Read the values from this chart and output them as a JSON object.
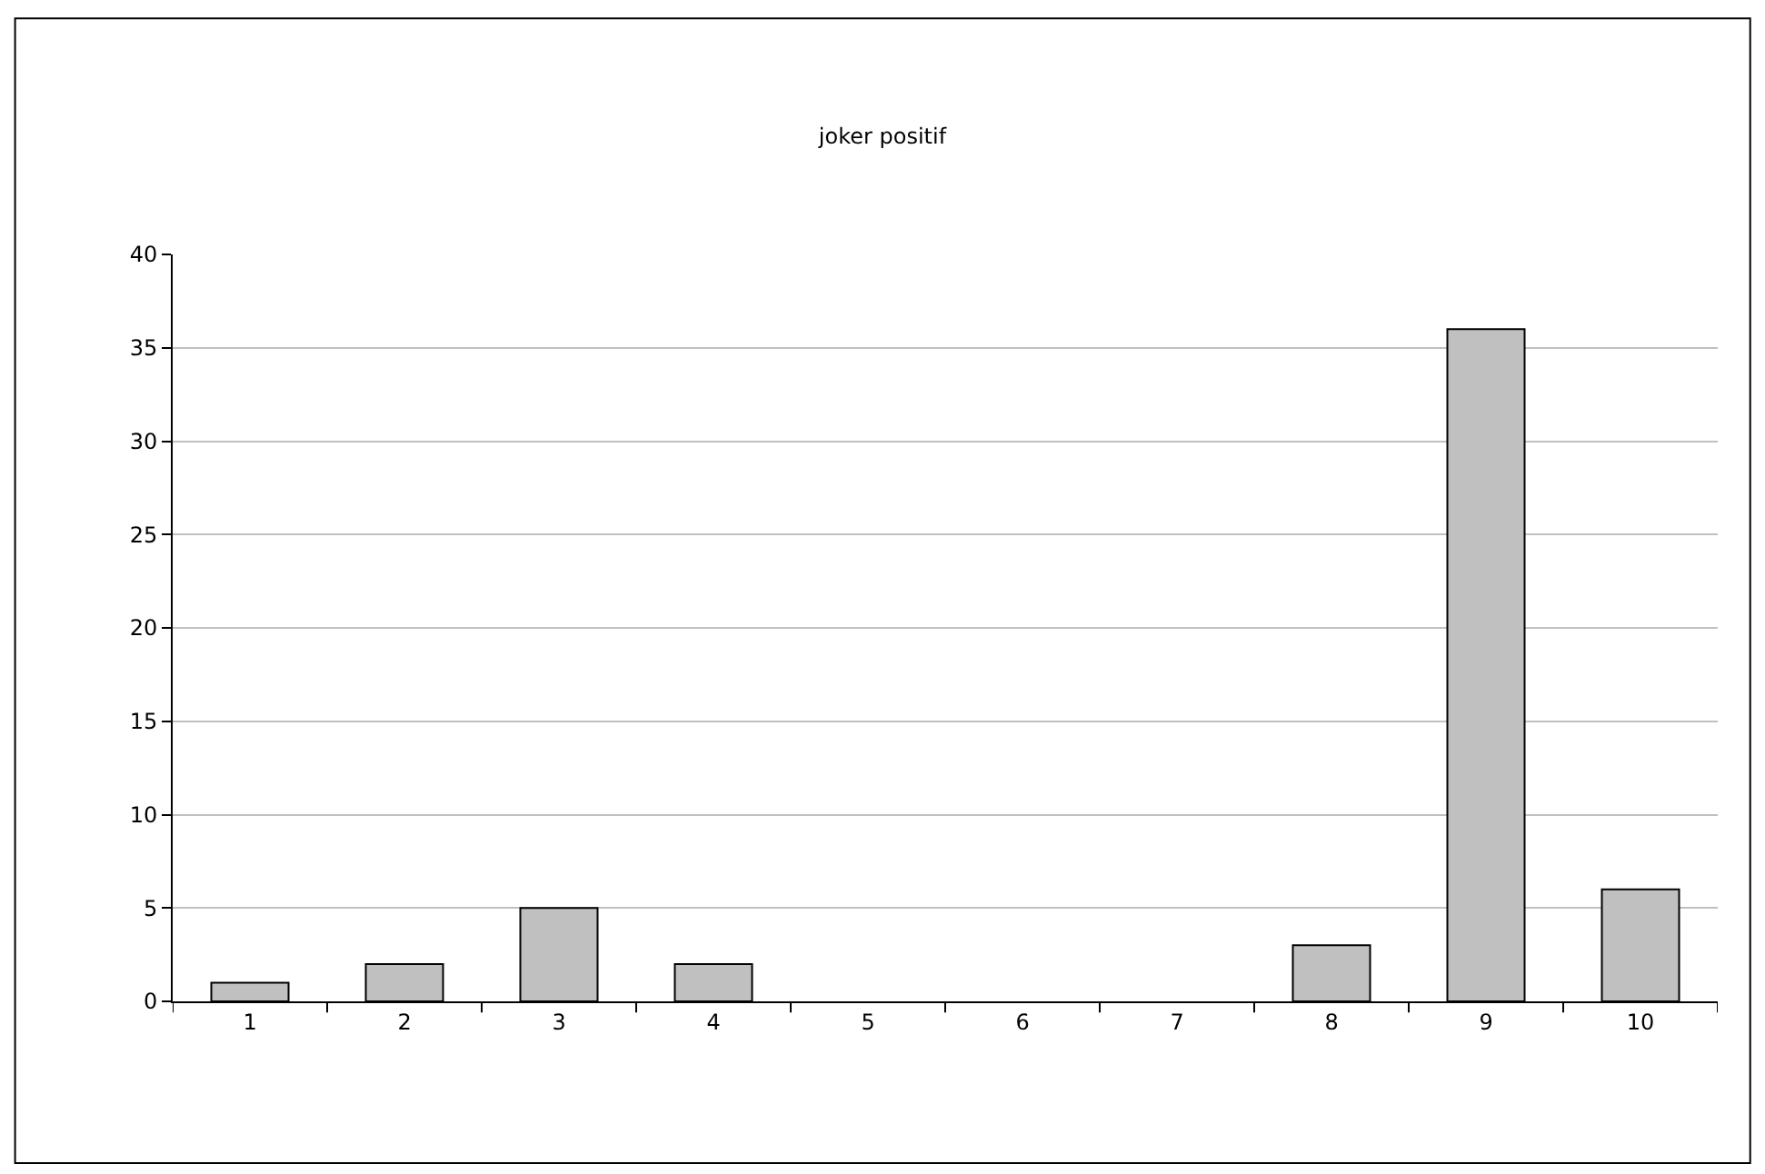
{
  "chart_data": {
    "type": "bar",
    "title": "joker positif",
    "categories": [
      "1",
      "2",
      "3",
      "4",
      "5",
      "6",
      "7",
      "8",
      "9",
      "10"
    ],
    "values": [
      1,
      2,
      5,
      2,
      0,
      0,
      0,
      3,
      36,
      6
    ],
    "color": "#c0c0c0",
    "ylim": [
      0,
      40
    ],
    "yticks": [
      0,
      5,
      10,
      15,
      20,
      25,
      30,
      35,
      40
    ],
    "grid": "y"
  }
}
